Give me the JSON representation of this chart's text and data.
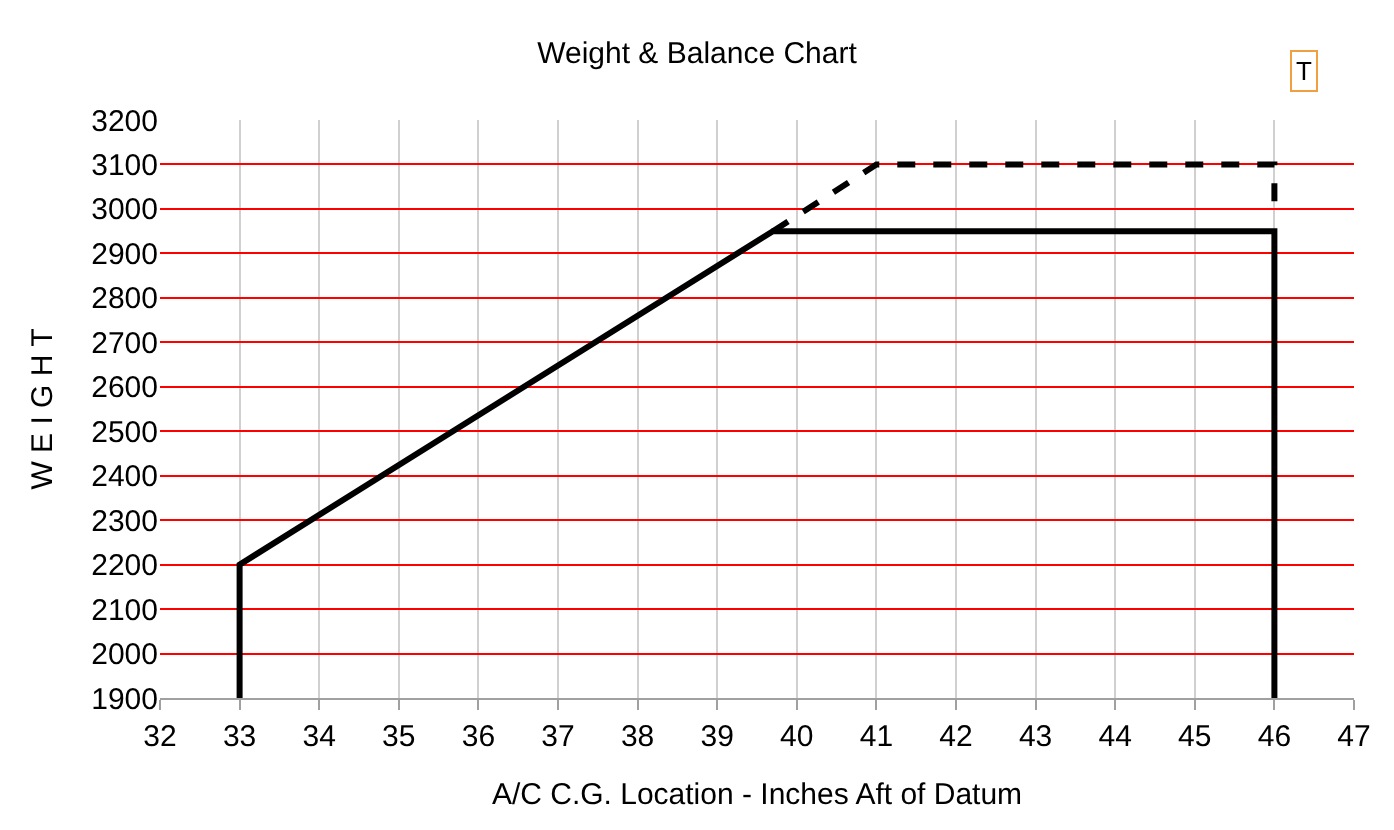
{
  "chart_data": {
    "type": "line",
    "title": "Weight & Balance Chart",
    "xlabel": "A/C C.G. Location - Inches Aft of Datum",
    "ylabel": "W E I G H T",
    "series": [
      {
        "color": "#000000",
        "line_style": "solid",
        "x": [
          33,
          33,
          39.7,
          46,
          46
        ],
        "values": [
          1900,
          2200,
          2950,
          2950,
          1900
        ]
      },
      {
        "color": "#000000",
        "line_style": "dashed",
        "x": [
          39.7,
          41,
          46,
          46
        ],
        "values": [
          2950,
          3100,
          3100,
          3000
        ]
      }
    ],
    "xlim": [
      32,
      47
    ],
    "xticks": [
      32,
      33,
      34,
      35,
      36,
      37,
      38,
      39,
      40,
      41,
      42,
      43,
      44,
      45,
      46,
      47
    ],
    "ylim": [
      1900,
      3200
    ],
    "yticks": [
      1900,
      2000,
      2100,
      2200,
      2300,
      2400,
      2500,
      2600,
      2700,
      2800,
      2900,
      3000,
      3100,
      3200
    ],
    "grid": true,
    "marker": "none",
    "annotations": [
      "T"
    ]
  }
}
